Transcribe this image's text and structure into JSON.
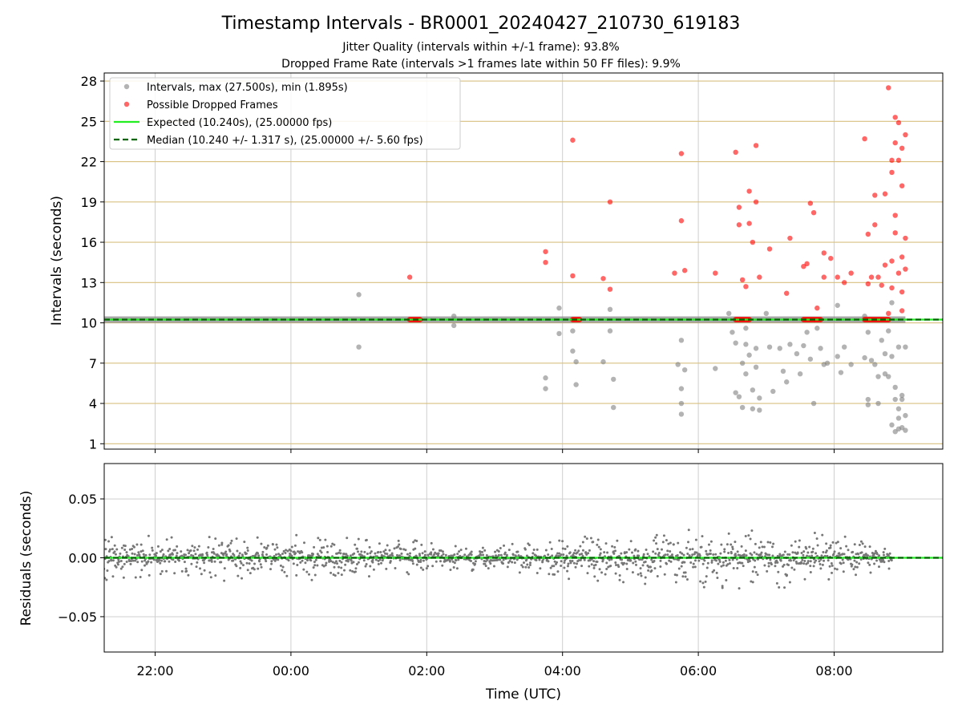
{
  "chart_data": [
    {
      "type": "scatter",
      "title": "Timestamp Intervals - BR0001_20240427_210730_619183",
      "subtitle_lines": [
        "Jitter Quality (intervals within +/-1 frame): 93.8%",
        "Dropped Frame Rate (intervals >1 frames late within 50 FF files): 9.9%"
      ],
      "xlabel": "",
      "ylabel": "Intervals (seconds)",
      "x_unit": "hours since 00:00 UTC (negative = previous day)",
      "xlim": [
        -2.75,
        9.6
      ],
      "ylim": [
        0.6,
        28.6
      ],
      "yticks": [
        1,
        4,
        7,
        10,
        13,
        16,
        19,
        22,
        25,
        28
      ],
      "ytick_labels": [
        "1",
        "4",
        "7",
        "10",
        "13",
        "16",
        "19",
        "22",
        "25",
        "28"
      ],
      "grid": true,
      "legend_position": "upper-left",
      "legend": [
        "Intervals, max (27.500s), min (1.895s)",
        "Possible Dropped Frames",
        "Expected (10.240s), (25.00000 fps)",
        "Median (10.240 +/- 1.317 s), (25.00000 +/- 5.60 fps)"
      ],
      "reference_lines": [
        {
          "name": "Expected (10.240s), (25.00000 fps)",
          "y": 10.24,
          "color": "#22ee22",
          "style": "solid"
        },
        {
          "name": "Median (10.240 +/- 1.317 s), (25.00000 +/- 5.60 fps)",
          "y": 10.24,
          "color": "#006400",
          "style": "dashed"
        }
      ],
      "series": [
        {
          "name": "Intervals, max (27.500s), min (1.895s)",
          "color": "#808080",
          "baseline_band": {
            "x_start": -2.9,
            "x_end": 9.05,
            "y": 10.24
          },
          "points": [
            [
              1.0,
              12.1
            ],
            [
              1.0,
              8.2
            ],
            [
              2.4,
              10.5
            ],
            [
              2.4,
              9.8
            ],
            [
              3.75,
              5.9
            ],
            [
              3.75,
              5.1
            ],
            [
              3.95,
              11.1
            ],
            [
              3.95,
              9.2
            ],
            [
              4.15,
              9.4
            ],
            [
              4.15,
              7.9
            ],
            [
              4.2,
              7.1
            ],
            [
              4.2,
              5.4
            ],
            [
              4.6,
              7.1
            ],
            [
              4.7,
              11.0
            ],
            [
              4.7,
              9.4
            ],
            [
              4.75,
              5.8
            ],
            [
              4.75,
              3.7
            ],
            [
              5.7,
              6.9
            ],
            [
              5.75,
              8.7
            ],
            [
              5.75,
              5.1
            ],
            [
              5.75,
              4.0
            ],
            [
              5.75,
              3.2
            ],
            [
              5.8,
              6.5
            ],
            [
              6.25,
              6.6
            ],
            [
              6.45,
              10.7
            ],
            [
              6.5,
              9.3
            ],
            [
              6.55,
              8.5
            ],
            [
              6.55,
              4.8
            ],
            [
              6.6,
              4.5
            ],
            [
              6.65,
              7.0
            ],
            [
              6.65,
              3.7
            ],
            [
              6.7,
              9.6
            ],
            [
              6.7,
              8.4
            ],
            [
              6.7,
              6.2
            ],
            [
              6.75,
              7.6
            ],
            [
              6.8,
              5.0
            ],
            [
              6.8,
              3.6
            ],
            [
              6.85,
              8.1
            ],
            [
              6.85,
              6.7
            ],
            [
              6.9,
              4.4
            ],
            [
              6.9,
              3.5
            ],
            [
              7.0,
              10.7
            ],
            [
              7.05,
              8.2
            ],
            [
              7.1,
              4.9
            ],
            [
              7.2,
              8.1
            ],
            [
              7.25,
              6.4
            ],
            [
              7.3,
              5.6
            ],
            [
              7.35,
              8.4
            ],
            [
              7.45,
              7.7
            ],
            [
              7.5,
              6.2
            ],
            [
              7.55,
              8.3
            ],
            [
              7.6,
              9.3
            ],
            [
              7.65,
              7.3
            ],
            [
              7.7,
              4.0
            ],
            [
              7.75,
              9.6
            ],
            [
              7.8,
              8.1
            ],
            [
              7.85,
              6.9
            ],
            [
              7.9,
              7.0
            ],
            [
              8.05,
              11.3
            ],
            [
              8.05,
              7.5
            ],
            [
              8.1,
              6.3
            ],
            [
              8.15,
              8.2
            ],
            [
              8.25,
              6.9
            ],
            [
              8.45,
              10.5
            ],
            [
              8.45,
              7.4
            ],
            [
              8.5,
              9.3
            ],
            [
              8.5,
              4.3
            ],
            [
              8.5,
              3.9
            ],
            [
              8.55,
              7.2
            ],
            [
              8.6,
              6.9
            ],
            [
              8.65,
              6.0
            ],
            [
              8.65,
              4.0
            ],
            [
              8.7,
              8.7
            ],
            [
              8.75,
              7.7
            ],
            [
              8.75,
              6.2
            ],
            [
              8.8,
              9.4
            ],
            [
              8.8,
              6.0
            ],
            [
              8.85,
              11.5
            ],
            [
              8.85,
              7.5
            ],
            [
              8.85,
              2.4
            ],
            [
              8.9,
              5.2
            ],
            [
              8.9,
              4.3
            ],
            [
              8.9,
              1.9
            ],
            [
              8.95,
              8.2
            ],
            [
              8.95,
              3.6
            ],
            [
              8.95,
              2.1
            ],
            [
              9.0,
              4.6
            ],
            [
              9.0,
              4.3
            ],
            [
              9.05,
              8.2
            ],
            [
              9.05,
              3.1
            ],
            [
              9.05,
              2.0
            ],
            [
              9.0,
              2.2
            ],
            [
              8.95,
              2.9
            ]
          ]
        },
        {
          "name": "Possible Dropped Frames",
          "color": "#ff0000",
          "clusters": [
            {
              "x_start": 1.75,
              "x_end": 1.9
            },
            {
              "x_start": 4.15,
              "x_end": 4.25
            },
            {
              "x_start": 6.55,
              "x_end": 6.75
            },
            {
              "x_start": 7.55,
              "x_end": 7.8
            },
            {
              "x_start": 8.45,
              "x_end": 8.8
            }
          ],
          "points": [
            [
              1.75,
              13.4
            ],
            [
              3.75,
              15.3
            ],
            [
              3.75,
              14.5
            ],
            [
              4.15,
              23.6
            ],
            [
              4.15,
              13.5
            ],
            [
              4.6,
              13.3
            ],
            [
              4.7,
              12.5
            ],
            [
              4.7,
              19.0
            ],
            [
              5.65,
              13.7
            ],
            [
              5.75,
              22.6
            ],
            [
              5.75,
              17.6
            ],
            [
              5.8,
              13.9
            ],
            [
              6.25,
              13.7
            ],
            [
              6.55,
              22.7
            ],
            [
              6.6,
              18.6
            ],
            [
              6.6,
              17.3
            ],
            [
              6.65,
              13.2
            ],
            [
              6.7,
              12.7
            ],
            [
              6.75,
              19.8
            ],
            [
              6.75,
              17.4
            ],
            [
              6.8,
              16.0
            ],
            [
              6.85,
              23.2
            ],
            [
              6.85,
              19.0
            ],
            [
              6.9,
              13.4
            ],
            [
              7.05,
              15.5
            ],
            [
              7.3,
              12.2
            ],
            [
              7.35,
              16.3
            ],
            [
              7.55,
              14.2
            ],
            [
              7.6,
              14.4
            ],
            [
              7.65,
              18.9
            ],
            [
              7.7,
              18.2
            ],
            [
              7.75,
              11.1
            ],
            [
              7.85,
              15.2
            ],
            [
              7.85,
              13.4
            ],
            [
              7.95,
              14.8
            ],
            [
              8.05,
              13.4
            ],
            [
              8.15,
              13.0
            ],
            [
              8.25,
              13.7
            ],
            [
              8.45,
              23.7
            ],
            [
              8.5,
              16.6
            ],
            [
              8.5,
              12.9
            ],
            [
              8.55,
              13.4
            ],
            [
              8.6,
              19.5
            ],
            [
              8.6,
              17.3
            ],
            [
              8.65,
              13.4
            ],
            [
              8.7,
              12.8
            ],
            [
              8.75,
              14.3
            ],
            [
              8.75,
              19.6
            ],
            [
              8.8,
              27.5
            ],
            [
              8.85,
              22.1
            ],
            [
              8.85,
              21.2
            ],
            [
              8.9,
              25.3
            ],
            [
              8.9,
              23.4
            ],
            [
              8.95,
              24.9
            ],
            [
              8.95,
              22.1
            ],
            [
              9.0,
              23.0
            ],
            [
              9.0,
              20.2
            ],
            [
              9.05,
              24.0
            ],
            [
              9.05,
              16.3
            ],
            [
              9.0,
              14.9
            ],
            [
              8.95,
              13.7
            ],
            [
              9.0,
              12.3
            ],
            [
              8.9,
              18.0
            ],
            [
              8.9,
              16.7
            ],
            [
              8.85,
              14.6
            ],
            [
              8.85,
              12.6
            ],
            [
              8.8,
              10.7
            ],
            [
              9.0,
              10.9
            ],
            [
              9.05,
              14.0
            ]
          ]
        }
      ]
    },
    {
      "type": "scatter",
      "title": "",
      "xlabel": "Time (UTC)",
      "ylabel": "Residuals (seconds)",
      "xlim": [
        -2.75,
        9.6
      ],
      "ylim": [
        -0.08,
        0.08
      ],
      "xticks": [
        -2,
        0,
        2,
        4,
        6,
        8
      ],
      "xtick_labels": [
        "22:00",
        "00:00",
        "02:00",
        "04:00",
        "06:00",
        "08:00"
      ],
      "yticks": [
        -0.05,
        0.0,
        0.05
      ],
      "ytick_labels": [
        "−0.05",
        "0.00",
        "0.05"
      ],
      "grid": true,
      "reference_lines": [
        {
          "y": 0.0,
          "color": "#22ee22",
          "style": "solid"
        },
        {
          "y": 0.0,
          "color": "#006400",
          "style": "dashed"
        }
      ],
      "series": [
        {
          "name": "",
          "color": "#777777",
          "x_range": [
            -2.9,
            8.85
          ],
          "approx_point_count": 1600,
          "spread_profile": [
            {
              "x": -2.9,
              "spread": 0.024
            },
            {
              "x": -1.5,
              "spread": 0.022
            },
            {
              "x": 0.0,
              "spread": 0.022
            },
            {
              "x": 1.5,
              "spread": 0.018
            },
            {
              "x": 3.0,
              "spread": 0.012
            },
            {
              "x": 4.0,
              "spread": 0.022
            },
            {
              "x": 5.5,
              "spread": 0.026
            },
            {
              "x": 7.0,
              "spread": 0.028
            },
            {
              "x": 8.0,
              "spread": 0.026
            },
            {
              "x": 8.85,
              "spread": 0.012
            }
          ]
        }
      ]
    }
  ]
}
